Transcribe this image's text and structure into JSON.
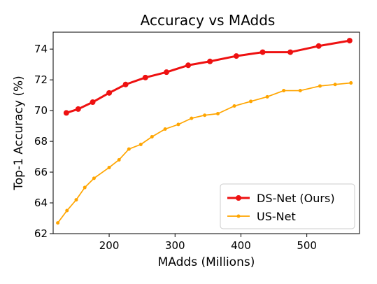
{
  "chart_data": {
    "type": "line",
    "title": "Accuracy vs MAdds",
    "xlabel": "MAdds (Millions)",
    "ylabel": "Top-1 Accuracy (%)",
    "xlim": [
      115,
      580
    ],
    "ylim": [
      62,
      75.1
    ],
    "xticks": [
      200,
      300,
      400,
      500
    ],
    "yticks": [
      62,
      64,
      66,
      68,
      70,
      72,
      74
    ],
    "grid": false,
    "legend_position": "lower-right",
    "series": [
      {
        "name": "DS-Net (Ours)",
        "color": "#ee1111",
        "linewidth": 3,
        "marker_radius": 4,
        "x": [
          135,
          153,
          175,
          200,
          225,
          255,
          287,
          320,
          353,
          393,
          433,
          475,
          518,
          565
        ],
        "y": [
          69.85,
          70.1,
          70.55,
          71.15,
          71.7,
          72.15,
          72.5,
          72.95,
          73.2,
          73.55,
          73.8,
          73.8,
          74.2,
          74.55
        ]
      },
      {
        "name": "US-Net",
        "color": "#ffa500",
        "linewidth": 1.7,
        "marker_radius": 2.5,
        "x": [
          122,
          136,
          150,
          163,
          177,
          200,
          215,
          230,
          248,
          265,
          285,
          305,
          325,
          345,
          365,
          390,
          415,
          440,
          465,
          490,
          520,
          543,
          567
        ],
        "y": [
          62.7,
          63.5,
          64.2,
          65.0,
          65.6,
          66.3,
          66.8,
          67.5,
          67.8,
          68.3,
          68.8,
          69.1,
          69.5,
          69.7,
          69.8,
          70.3,
          70.6,
          70.9,
          71.3,
          71.3,
          71.6,
          71.7,
          71.8
        ]
      }
    ]
  }
}
